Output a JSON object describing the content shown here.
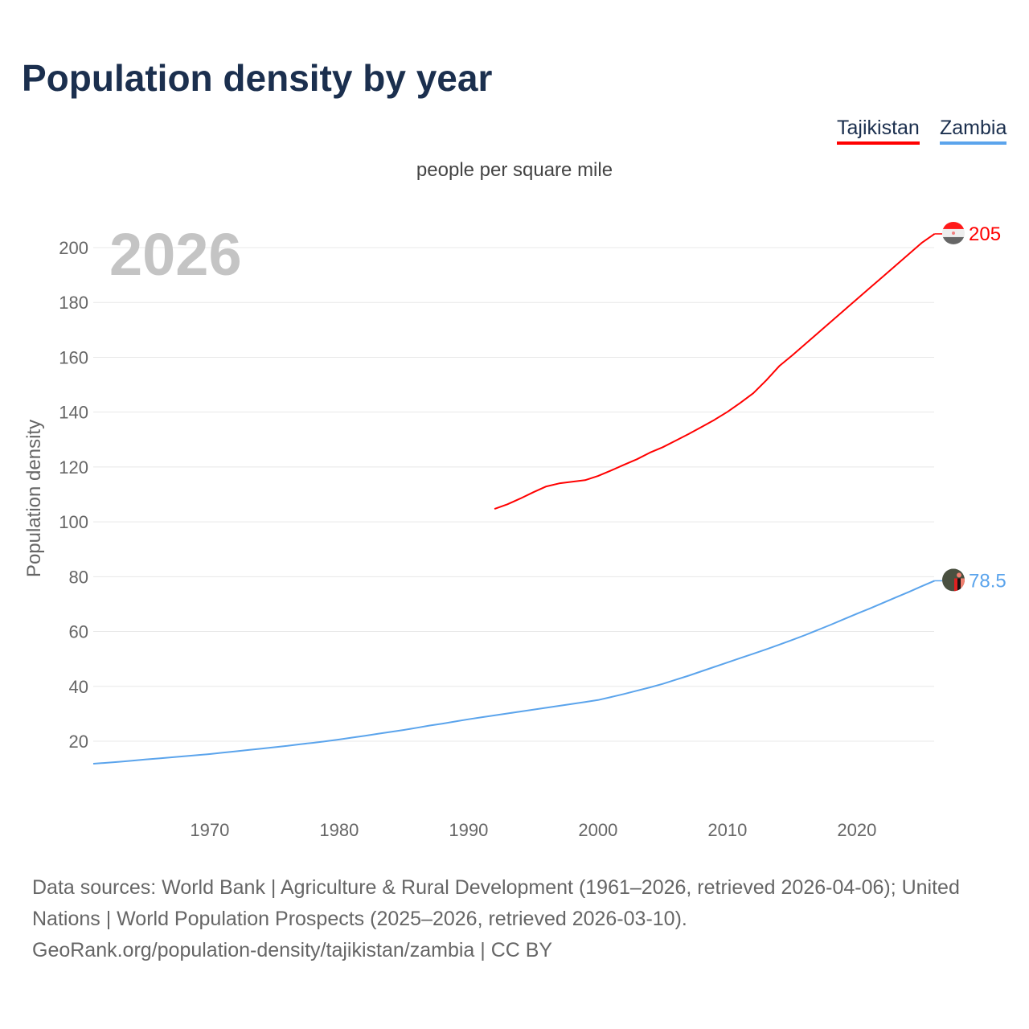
{
  "chart_data": {
    "type": "line",
    "title": "Population density by year",
    "subtitle": "people per square mile",
    "ylabel": "Population density",
    "xlabel": "",
    "year_watermark": "2026",
    "xlim": [
      1961,
      2026
    ],
    "ylim": [
      0,
      210
    ],
    "x_ticks": [
      1970,
      1980,
      1990,
      2000,
      2010,
      2020
    ],
    "y_ticks": [
      20,
      40,
      60,
      80,
      100,
      120,
      140,
      160,
      180,
      200
    ],
    "grid": true,
    "legend_position": "top-right",
    "series": [
      {
        "name": "Tajikistan",
        "color": "#ff0000",
        "end_label": "205",
        "x_start": 1992,
        "values": [
          104.7,
          106.4,
          108.5,
          110.8,
          112.9,
          114.0,
          114.6,
          115.2,
          116.7,
          118.7,
          120.8,
          122.8,
          125.2,
          127.2,
          129.6,
          132.0,
          134.6,
          137.2,
          140.1,
          143.4,
          146.9,
          151.6,
          156.8,
          160.7,
          164.8,
          168.9,
          173.0,
          177.1,
          181.2,
          185.3,
          189.4,
          193.5,
          197.6,
          201.7,
          205.0
        ]
      },
      {
        "name": "Zambia",
        "color": "#5ba4ec",
        "end_label": "78.5",
        "x_start": 1961,
        "values": [
          11.8,
          12.1,
          12.5,
          12.9,
          13.3,
          13.7,
          14.1,
          14.5,
          14.9,
          15.3,
          15.8,
          16.3,
          16.8,
          17.3,
          17.8,
          18.3,
          18.9,
          19.4,
          20.0,
          20.6,
          21.3,
          22.0,
          22.7,
          23.4,
          24.1,
          24.9,
          25.7,
          26.4,
          27.2,
          28.0,
          28.7,
          29.4,
          30.1,
          30.8,
          31.5,
          32.2,
          32.9,
          33.6,
          34.3,
          35.0,
          36.1,
          37.2,
          38.4,
          39.6,
          40.9,
          42.4,
          43.9,
          45.5,
          47.1,
          48.7,
          50.3,
          51.9,
          53.5,
          55.2,
          56.9,
          58.7,
          60.6,
          62.5,
          64.5,
          66.5,
          68.4,
          70.4,
          72.4,
          74.4,
          76.5,
          78.5
        ]
      }
    ]
  },
  "footer": {
    "line1": "Data sources: World Bank | Agriculture & Rural Development (1961–2026, retrieved 2026-04-06); United Nations | World Population Prospects (2025–2026, retrieved 2026-03-10).",
    "line2": "GeoRank.org/population-density/tajikistan/zambia | CC BY"
  }
}
